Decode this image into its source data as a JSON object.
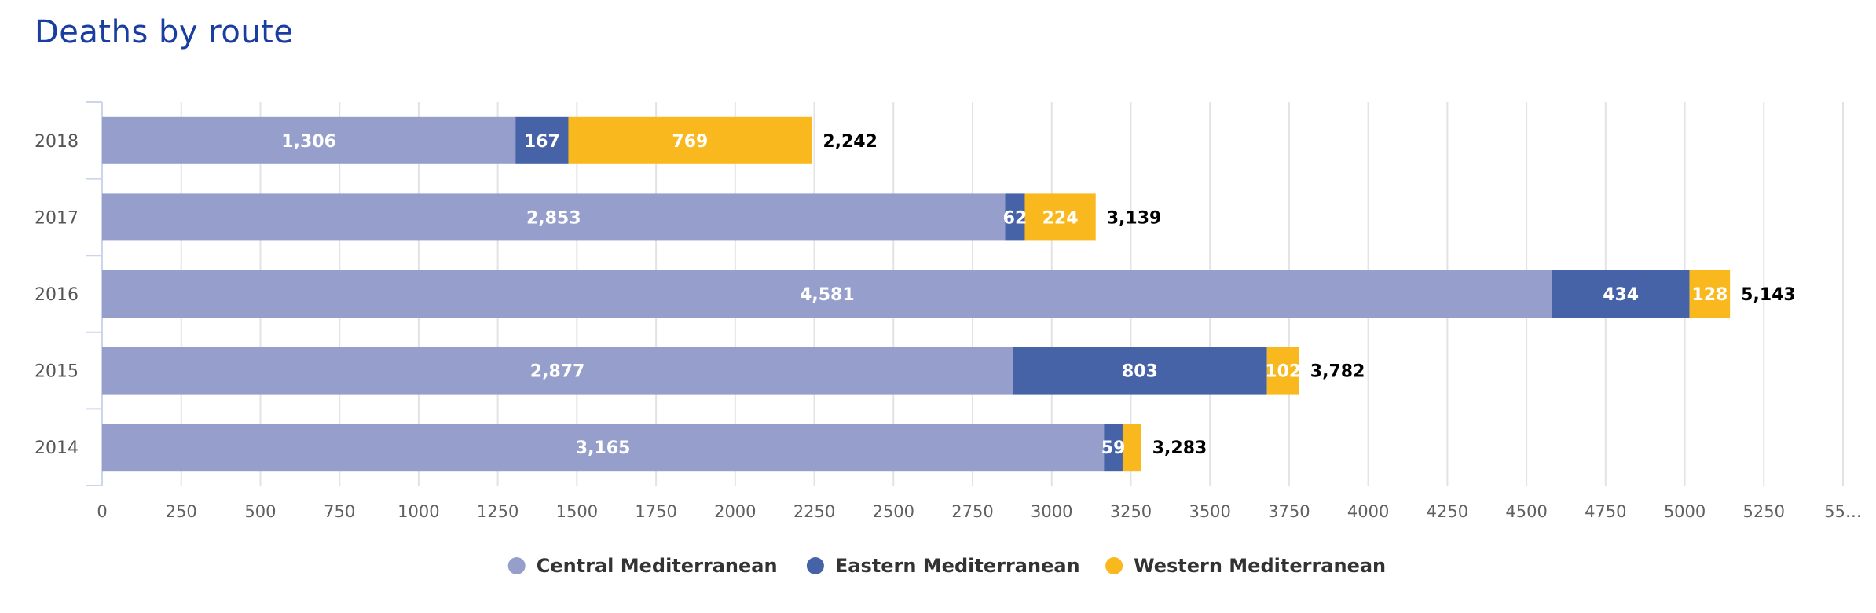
{
  "chart_data": {
    "type": "bar",
    "orientation": "horizontal",
    "stacking": "normal",
    "title": "Deaths by route",
    "categories": [
      "2018",
      "2017",
      "2016",
      "2015",
      "2014"
    ],
    "series": [
      {
        "name": "Central Mediterranean",
        "color": "#969fcc",
        "values": [
          1306,
          2853,
          4581,
          2877,
          3165
        ],
        "labels": [
          "1,306",
          "2,853",
          "4,581",
          "2,877",
          "3,165"
        ]
      },
      {
        "name": "Eastern Mediterranean",
        "color": "#4763a8",
        "values": [
          167,
          62,
          434,
          803,
          59
        ],
        "labels": [
          "167",
          "62",
          "434",
          "803",
          "59"
        ]
      },
      {
        "name": "Western Mediterranean",
        "color": "#f9b91e",
        "values": [
          769,
          224,
          128,
          102,
          59
        ],
        "labels": [
          "769",
          "224",
          "128",
          "102",
          ""
        ]
      }
    ],
    "totals": [
      "2,242",
      "3,139",
      "5,143",
      "3,782",
      "3,283"
    ],
    "xlim": [
      0,
      5500
    ],
    "x_ticks": [
      "0",
      "250",
      "500",
      "750",
      "1000",
      "1250",
      "1500",
      "1750",
      "2000",
      "2250",
      "2500",
      "2750",
      "3000",
      "3250",
      "3500",
      "3750",
      "4000",
      "4250",
      "4500",
      "4750",
      "5000",
      "5250",
      "55…"
    ],
    "grid": true,
    "legend_position": "bottom-center"
  }
}
